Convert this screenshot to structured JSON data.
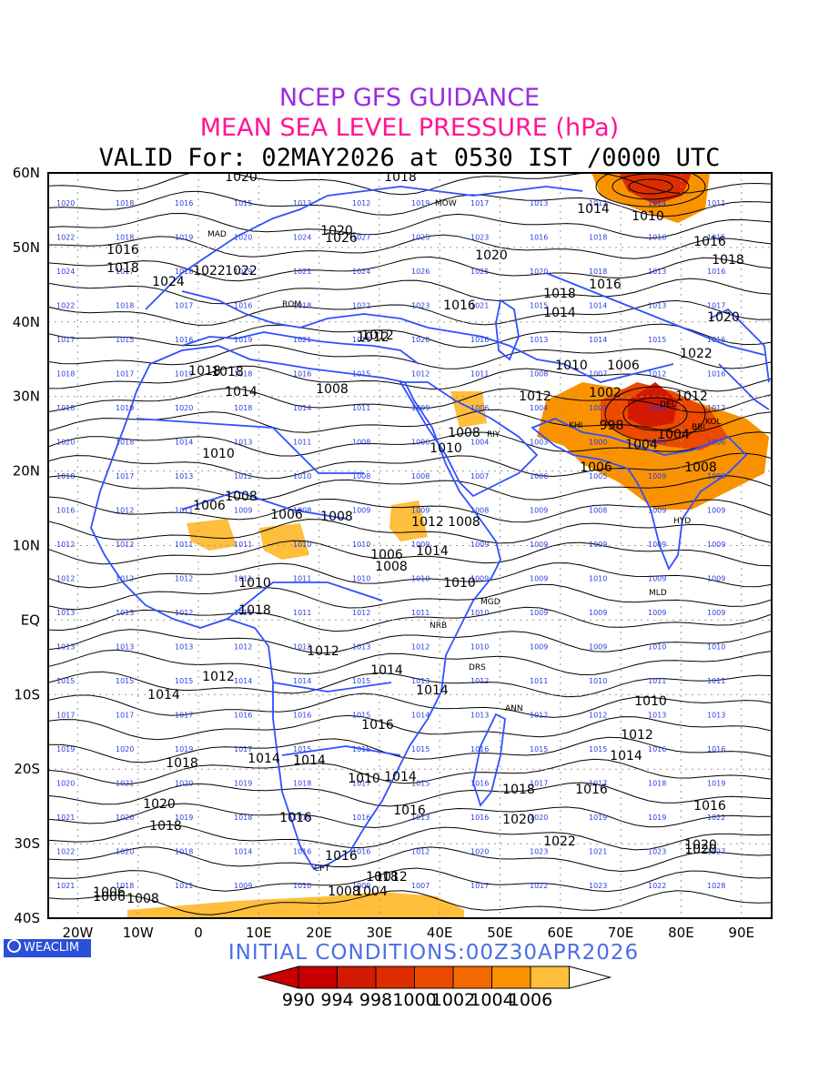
{
  "header": {
    "line1": "NCEP GFS GUIDANCE",
    "line2": "MEAN SEA LEVEL PRESSURE (hPa)",
    "line3": "VALID For: 02MAY2026 at 0530 IST /0000 UTC"
  },
  "footer": {
    "brand": "WEACLIM",
    "initial_conditions": "INITIAL CONDITIONS:00Z30APR2026"
  },
  "colors": {
    "coast": "#3050ff",
    "contour": "#000000",
    "grid": "#999999",
    "station_values": "#2a3fe0"
  },
  "map": {
    "lat_labels": [
      "60N",
      "50N",
      "40N",
      "30N",
      "20N",
      "10N",
      "EQ",
      "10S",
      "20S",
      "30S",
      "40S"
    ],
    "lon_labels": [
      "20W",
      "10W",
      "0",
      "10E",
      "20E",
      "30E",
      "40E",
      "50E",
      "60E",
      "70E",
      "80E",
      "90E"
    ],
    "contour_labels": [
      "1020",
      "1018",
      "1016",
      "1022",
      "1014",
      "1010",
      "1016",
      "1018",
      "1024",
      "1022",
      "1020",
      "1018",
      "1026",
      "1020",
      "1016",
      "1018",
      "1016",
      "1014",
      "1012",
      "1018",
      "1020",
      "1022",
      "1012",
      "1018",
      "1014",
      "1008",
      "1010",
      "1012",
      "1010",
      "1006",
      "1002",
      "998",
      "1004",
      "1012",
      "1010",
      "1006",
      "1008",
      "1004",
      "1006",
      "1008",
      "1006",
      "1008",
      "1012",
      "1008",
      "1014",
      "1010",
      "1006",
      "1008",
      "1010",
      "1012",
      "1012",
      "1014",
      "1014",
      "1016",
      "1014",
      "1018",
      "1020",
      "1018",
      "1016",
      "1014",
      "1008",
      "1010",
      "1012",
      "1014",
      "1016",
      "1018",
      "1020",
      "1016",
      "1018",
      "1022",
      "1020",
      "1012",
      "1008",
      "1004",
      "1006",
      "1010",
      "1014",
      "1016",
      "1008",
      "1006",
      "1016",
      "1018",
      "1020",
      "1014"
    ],
    "station_row_values": [
      [
        "1020",
        "1018",
        "1016",
        "1015",
        "1013",
        "1012",
        "1019",
        "1017",
        "1013",
        "1012",
        "1014",
        "1011"
      ],
      [
        "1022",
        "1018",
        "1019",
        "1020",
        "1024",
        "1027",
        "1025",
        "1023",
        "1016",
        "1018",
        "1016",
        "1015"
      ],
      [
        "1024",
        "1017",
        "1018",
        "1019",
        "1021",
        "1024",
        "1026",
        "1025",
        "1020",
        "1018",
        "1013",
        "1016"
      ],
      [
        "1022",
        "1018",
        "1017",
        "1016",
        "1018",
        "1022",
        "1023",
        "1021",
        "1015",
        "1014",
        "1013",
        "1017"
      ],
      [
        "1017",
        "1015",
        "1016",
        "1019",
        "1021",
        "1023",
        "1020",
        "1016",
        "1013",
        "1014",
        "1015",
        "1016"
      ],
      [
        "1018",
        "1017",
        "1019",
        "1018",
        "1016",
        "1015",
        "1012",
        "1011",
        "1008",
        "1007",
        "1012",
        "1016"
      ],
      [
        "1018",
        "1019",
        "1020",
        "1018",
        "1014",
        "1011",
        "1009",
        "1006",
        "1004",
        "1001",
        "1008",
        "1012"
      ],
      [
        "1020",
        "1018",
        "1014",
        "1013",
        "1011",
        "1008",
        "1006",
        "1004",
        "1003",
        "1000",
        "1004",
        "1006"
      ],
      [
        "1018",
        "1017",
        "1013",
        "1012",
        "1010",
        "1008",
        "1008",
        "1007",
        "1006",
        "1005",
        "1009",
        "1008"
      ],
      [
        "1016",
        "1012",
        "1011",
        "1009",
        "1008",
        "1009",
        "1009",
        "1008",
        "1009",
        "1008",
        "1009",
        "1009"
      ],
      [
        "1012",
        "1012",
        "1011",
        "1011",
        "1010",
        "1010",
        "1009",
        "1009",
        "1009",
        "1009",
        "1009",
        "1009"
      ],
      [
        "1012",
        "1012",
        "1012",
        "1011",
        "1011",
        "1010",
        "1010",
        "1009",
        "1009",
        "1010",
        "1009",
        "1009"
      ],
      [
        "1013",
        "1013",
        "1012",
        "1011",
        "1011",
        "1012",
        "1011",
        "1010",
        "1009",
        "1009",
        "1009",
        "1009"
      ],
      [
        "1013",
        "1013",
        "1013",
        "1012",
        "1012",
        "1013",
        "1012",
        "1010",
        "1009",
        "1009",
        "1010",
        "1010"
      ],
      [
        "1015",
        "1015",
        "1015",
        "1014",
        "1014",
        "1015",
        "1013",
        "1012",
        "1011",
        "1010",
        "1011",
        "1011"
      ],
      [
        "1017",
        "1017",
        "1017",
        "1016",
        "1016",
        "1015",
        "1014",
        "1013",
        "1012",
        "1012",
        "1013",
        "1013"
      ],
      [
        "1019",
        "1020",
        "1019",
        "1017",
        "1015",
        "1015",
        "1015",
        "1016",
        "1015",
        "1015",
        "1016",
        "1016"
      ],
      [
        "1020",
        "1021",
        "1020",
        "1019",
        "1018",
        "1017",
        "1015",
        "1016",
        "1017",
        "1017",
        "1018",
        "1019"
      ],
      [
        "1021",
        "1020",
        "1019",
        "1018",
        "1018",
        "1016",
        "1013",
        "1016",
        "1020",
        "1019",
        "1019",
        "1022"
      ],
      [
        "1022",
        "1020",
        "1018",
        "1014",
        "1016",
        "1016",
        "1012",
        "1020",
        "1023",
        "1021",
        "1023",
        "1027"
      ],
      [
        "1021",
        "1018",
        "1011",
        "1009",
        "1010",
        "1009",
        "1007",
        "1017",
        "1022",
        "1023",
        "1022",
        "1028"
      ]
    ],
    "city_codes": [
      "MOW",
      "MAD",
      "ROM",
      "RIY",
      "DEL",
      "BBI",
      "KOL",
      "MGD",
      "NRB",
      "DRS",
      "ANN",
      "CPT",
      "MLD",
      "HYD",
      "KHI"
    ]
  },
  "legend": {
    "levels": [
      "990",
      "994",
      "998",
      "1000",
      "1002",
      "1004",
      "1006"
    ],
    "colors": [
      "#c80000",
      "#d21a00",
      "#dc2d00",
      "#eb4a00",
      "#f56a00",
      "#fa9200",
      "#ffbe3c"
    ]
  }
}
